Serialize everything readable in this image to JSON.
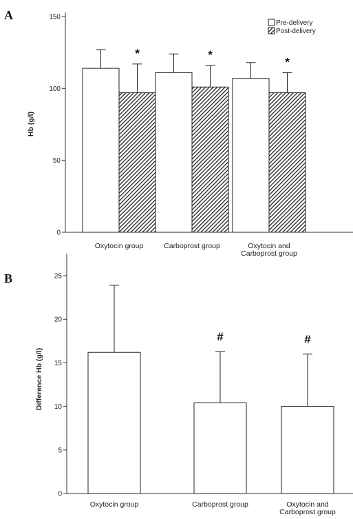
{
  "chart_data": [
    {
      "type": "bar",
      "panel_label": "A",
      "ylabel": "Hb (g/l)",
      "ylim": [
        0,
        150
      ],
      "yticks": [
        0,
        50,
        100,
        150
      ],
      "categories": [
        [
          "Oxytocin group"
        ],
        [
          "Carboprost group"
        ],
        [
          "Oxytocin and",
          "Carboprost group"
        ]
      ],
      "series": [
        {
          "name": "Pre-delivery",
          "pattern": "white",
          "values": [
            114,
            111,
            107
          ],
          "errors": [
            13,
            13,
            11
          ],
          "markers": [
            "",
            "",
            ""
          ]
        },
        {
          "name": "Post-delivery",
          "pattern": "hatched",
          "values": [
            97,
            101,
            97
          ],
          "errors": [
            20,
            15,
            14
          ],
          "markers": [
            "*",
            "*",
            "*"
          ]
        }
      ],
      "legend_position": "top-right"
    },
    {
      "type": "bar",
      "panel_label": "B",
      "ylabel": "Difference Hb (g/l)",
      "ylim": [
        0,
        25
      ],
      "yticks": [
        0,
        5,
        10,
        15,
        20,
        25
      ],
      "categories": [
        [
          "Oxytocin group"
        ],
        [
          "Carboprost group"
        ],
        [
          "Oxytocin and",
          "Carboprost group"
        ]
      ],
      "series": [
        {
          "pattern": "white",
          "values": [
            16.2,
            10.4,
            10.0
          ],
          "errors": [
            7.7,
            5.9,
            6.0
          ],
          "markers": [
            "",
            "#",
            "#"
          ]
        }
      ]
    }
  ]
}
